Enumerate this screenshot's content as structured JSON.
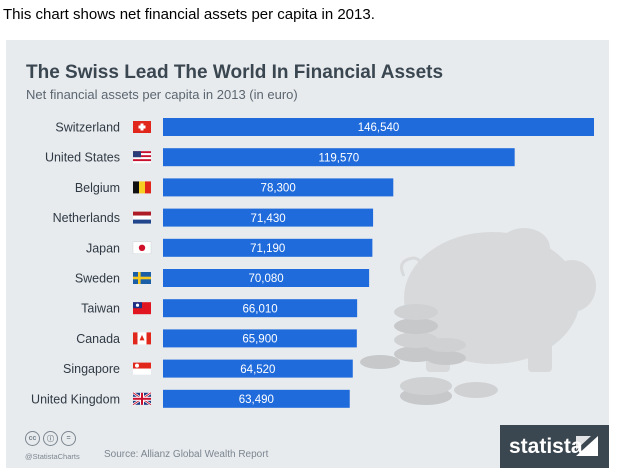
{
  "caption": "This chart shows net financial assets per capita in 2013.",
  "chart_data": {
    "type": "bar",
    "orientation": "horizontal",
    "title": "The Swiss Lead The World In Financial Assets",
    "subtitle": "Net financial assets per capita in 2013 (in euro)",
    "categories": [
      "Switzerland",
      "United States",
      "Belgium",
      "Netherlands",
      "Japan",
      "Sweden",
      "Taiwan",
      "Canada",
      "Singapore",
      "United Kingdom"
    ],
    "values": [
      146540,
      119570,
      78300,
      71430,
      71190,
      70080,
      66010,
      65900,
      64520,
      63490
    ],
    "value_labels": [
      "146,540",
      "119,570",
      "78,300",
      "71,430",
      "71,190",
      "70,080",
      "66,010",
      "65,900",
      "64,520",
      "63,490"
    ],
    "flags": [
      "ch",
      "us",
      "be",
      "nl",
      "jp",
      "se",
      "tw",
      "ca",
      "sg",
      "gb"
    ],
    "xlim": [
      0,
      146540
    ],
    "grid": false,
    "legend": "none",
    "bar_color": "#1f6bdc"
  },
  "footer": {
    "icons": [
      "cc-icon",
      "by-icon",
      "nd-icon"
    ],
    "icon_glyphs": [
      "cc",
      "ⓘ",
      "="
    ],
    "handle": "@StatistaCharts",
    "source": "Source: Allianz Global Wealth Report",
    "brand": "statista",
    "brand_color": "#3a4650"
  }
}
